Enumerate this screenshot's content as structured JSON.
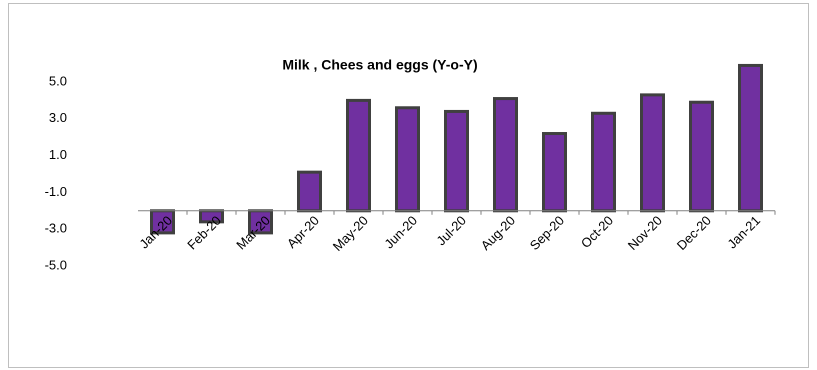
{
  "chart_data": {
    "type": "bar",
    "title": "Milk , Chees and eggs (Y-o-Y)",
    "categories": [
      "Jan-20",
      "Feb-20",
      "Mar-20",
      "Apr-20",
      "May-20",
      "Jun-20",
      "Jul-20",
      "Aug-20",
      "Sep-20",
      "Oct-20",
      "Nov-20",
      "Dec-20",
      "Jan-21"
    ],
    "values": [
      -3.2,
      -2.6,
      -3.2,
      0.1,
      4.0,
      3.6,
      3.4,
      4.1,
      2.2,
      3.3,
      4.3,
      3.9,
      5.9
    ],
    "color": "#7030a0",
    "edge_color": "#404040",
    "ylim": [
      -5,
      6
    ],
    "yticks": [
      {
        "value": -5,
        "label": "-5.0"
      },
      {
        "value": -3,
        "label": "-3.0"
      },
      {
        "value": -1,
        "label": "-1.0"
      },
      {
        "value": 1,
        "label": "1.0"
      },
      {
        "value": 3,
        "label": "3.0"
      },
      {
        "value": 5,
        "label": "5.0"
      }
    ],
    "baseline": -2,
    "grid": false
  }
}
